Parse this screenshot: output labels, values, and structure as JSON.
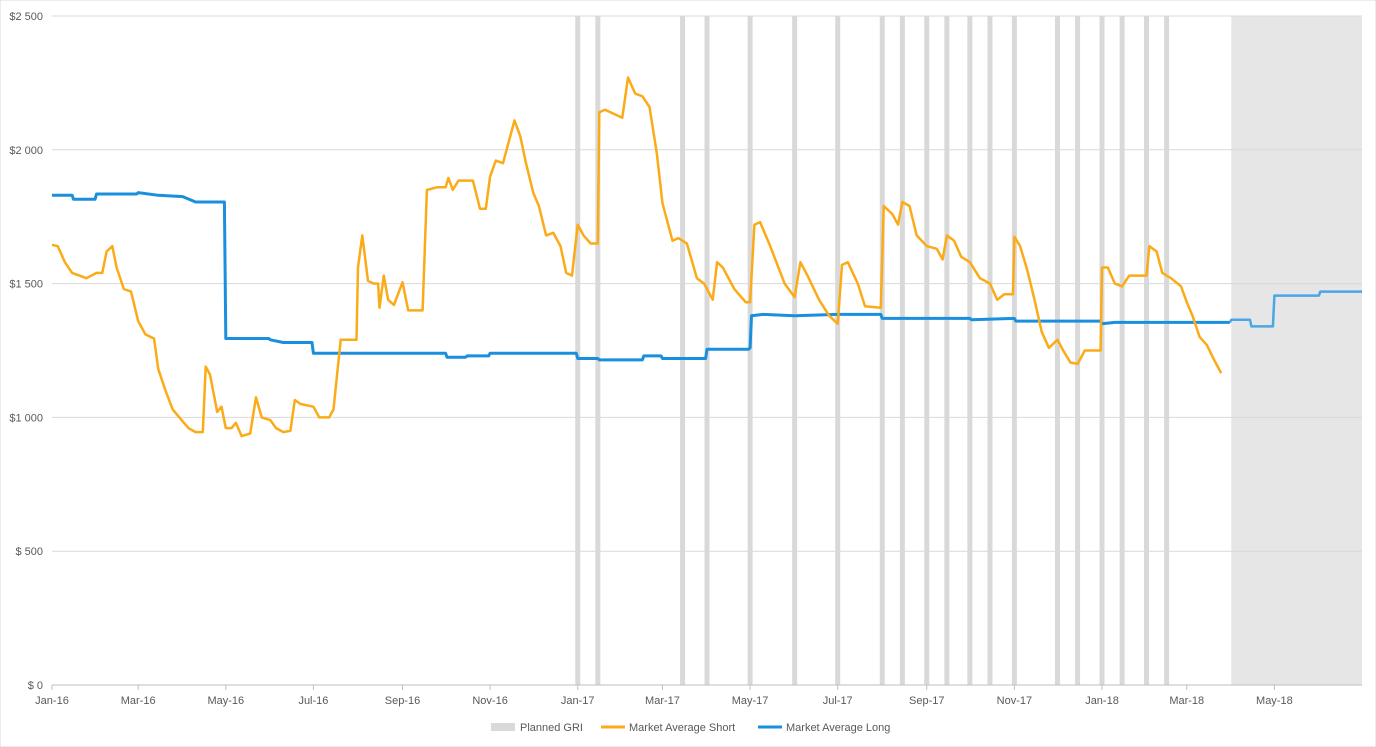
{
  "chart_data": {
    "type": "line",
    "title": "",
    "xlabel": "",
    "ylabel": "",
    "ylim": [
      0,
      2500
    ],
    "y_ticks": [
      0,
      500,
      1000,
      1500,
      2000,
      2500
    ],
    "y_tick_labels": [
      "$ 0",
      "$ 500",
      "$1 000",
      "$1 500",
      "$2 000",
      "$2 500"
    ],
    "x_range": [
      "2016-01-01",
      "2018-07-01"
    ],
    "x_ticks": [
      "2016-01-01",
      "2016-03-01",
      "2016-05-01",
      "2016-07-01",
      "2016-09-01",
      "2016-11-01",
      "2017-01-01",
      "2017-03-01",
      "2017-05-01",
      "2017-07-01",
      "2017-09-01",
      "2017-11-01",
      "2018-01-01",
      "2018-03-01",
      "2018-05-01"
    ],
    "x_tick_labels": [
      "Jan-16",
      "Mar-16",
      "May-16",
      "Jul-16",
      "Sep-16",
      "Nov-16",
      "Jan-17",
      "Mar-17",
      "May-17",
      "Jul-17",
      "Sep-17",
      "Nov-17",
      "Jan-18",
      "Mar-18",
      "May-18"
    ],
    "grid": "horizontal",
    "legend_position": "bottom",
    "legend": [
      "Planned GRI",
      "Market Average Short",
      "Market Average Long"
    ],
    "colors": {
      "gri": "#d9d9d9",
      "short": "#fbab18",
      "long": "#1a8fdd",
      "forecast_bg": "#e6e6e6",
      "forecast_line": "#4aa6e6",
      "grid": "#d9d9d9",
      "axis": "#bfbfbf",
      "tick_text": "#595959"
    },
    "forecast_region": [
      "2018-04-01",
      "2018-07-01"
    ],
    "planned_gri": [
      "2017-01-01",
      "2017-01-15",
      "2017-03-15",
      "2017-04-01",
      "2017-05-01",
      "2017-06-01",
      "2017-07-01",
      "2017-08-01",
      "2017-08-15",
      "2017-09-01",
      "2017-09-15",
      "2017-10-01",
      "2017-10-15",
      "2017-11-01",
      "2017-12-01",
      "2017-12-15",
      "2018-01-01",
      "2018-01-15",
      "2018-02-01",
      "2018-02-15"
    ],
    "series": [
      {
        "name": "Market Average Long",
        "values": [
          [
            "2016-01-01",
            1830
          ],
          [
            "2016-01-15",
            1830
          ],
          [
            "2016-01-16",
            1815
          ],
          [
            "2016-01-31",
            1815
          ],
          [
            "2016-02-01",
            1835
          ],
          [
            "2016-02-29",
            1835
          ],
          [
            "2016-03-01",
            1840
          ],
          [
            "2016-03-15",
            1830
          ],
          [
            "2016-04-01",
            1825
          ],
          [
            "2016-04-10",
            1805
          ],
          [
            "2016-04-30",
            1805
          ],
          [
            "2016-05-01",
            1295
          ],
          [
            "2016-05-31",
            1295
          ],
          [
            "2016-06-01",
            1290
          ],
          [
            "2016-06-10",
            1280
          ],
          [
            "2016-06-30",
            1280
          ],
          [
            "2016-07-01",
            1240
          ],
          [
            "2016-10-01",
            1240
          ],
          [
            "2016-10-02",
            1225
          ],
          [
            "2016-10-15",
            1225
          ],
          [
            "2016-10-16",
            1230
          ],
          [
            "2016-10-31",
            1230
          ],
          [
            "2016-11-01",
            1240
          ],
          [
            "2016-12-31",
            1240
          ],
          [
            "2017-01-01",
            1220
          ],
          [
            "2017-01-15",
            1220
          ],
          [
            "2017-01-16",
            1215
          ],
          [
            "2017-02-15",
            1215
          ],
          [
            "2017-02-16",
            1230
          ],
          [
            "2017-02-28",
            1230
          ],
          [
            "2017-03-01",
            1220
          ],
          [
            "2017-03-31",
            1220
          ],
          [
            "2017-04-01",
            1255
          ],
          [
            "2017-04-30",
            1255
          ],
          [
            "2017-05-01",
            1260
          ],
          [
            "2017-05-02",
            1380
          ],
          [
            "2017-05-10",
            1385
          ],
          [
            "2017-06-01",
            1380
          ],
          [
            "2017-07-01",
            1385
          ],
          [
            "2017-07-31",
            1385
          ],
          [
            "2017-08-01",
            1370
          ],
          [
            "2017-10-01",
            1370
          ],
          [
            "2017-10-02",
            1365
          ],
          [
            "2017-11-01",
            1370
          ],
          [
            "2017-11-02",
            1360
          ],
          [
            "2017-12-31",
            1360
          ],
          [
            "2018-01-01",
            1350
          ],
          [
            "2018-01-10",
            1355
          ],
          [
            "2018-03-31",
            1355
          ],
          [
            "2018-04-01",
            1365
          ],
          [
            "2018-04-14",
            1365
          ],
          [
            "2018-04-15",
            1340
          ],
          [
            "2018-04-30",
            1340
          ],
          [
            "2018-05-01",
            1455
          ],
          [
            "2018-06-01",
            1455
          ],
          [
            "2018-06-02",
            1470
          ],
          [
            "2018-07-01",
            1470
          ]
        ]
      },
      {
        "name": "Market Average Short",
        "values": [
          [
            "2016-01-01",
            1645
          ],
          [
            "2016-01-05",
            1640
          ],
          [
            "2016-01-10",
            1580
          ],
          [
            "2016-01-15",
            1540
          ],
          [
            "2016-01-20",
            1530
          ],
          [
            "2016-01-25",
            1520
          ],
          [
            "2016-02-01",
            1540
          ],
          [
            "2016-02-05",
            1540
          ],
          [
            "2016-02-08",
            1620
          ],
          [
            "2016-02-12",
            1640
          ],
          [
            "2016-02-15",
            1560
          ],
          [
            "2016-02-20",
            1480
          ],
          [
            "2016-02-25",
            1470
          ],
          [
            "2016-03-01",
            1360
          ],
          [
            "2016-03-06",
            1310
          ],
          [
            "2016-03-12",
            1295
          ],
          [
            "2016-03-15",
            1180
          ],
          [
            "2016-03-20",
            1100
          ],
          [
            "2016-03-25",
            1030
          ],
          [
            "2016-04-01",
            985
          ],
          [
            "2016-04-05",
            960
          ],
          [
            "2016-04-10",
            945
          ],
          [
            "2016-04-15",
            945
          ],
          [
            "2016-04-17",
            1190
          ],
          [
            "2016-04-20",
            1160
          ],
          [
            "2016-04-25",
            1020
          ],
          [
            "2016-04-28",
            1040
          ],
          [
            "2016-05-01",
            960
          ],
          [
            "2016-05-05",
            960
          ],
          [
            "2016-05-08",
            980
          ],
          [
            "2016-05-12",
            930
          ],
          [
            "2016-05-18",
            940
          ],
          [
            "2016-05-22",
            1075
          ],
          [
            "2016-05-26",
            1000
          ],
          [
            "2016-06-01",
            990
          ],
          [
            "2016-06-05",
            960
          ],
          [
            "2016-06-10",
            945
          ],
          [
            "2016-06-15",
            950
          ],
          [
            "2016-06-18",
            1065
          ],
          [
            "2016-06-22",
            1050
          ],
          [
            "2016-07-01",
            1040
          ],
          [
            "2016-07-05",
            1000
          ],
          [
            "2016-07-12",
            1000
          ],
          [
            "2016-07-15",
            1030
          ],
          [
            "2016-07-20",
            1290
          ],
          [
            "2016-07-31",
            1290
          ],
          [
            "2016-08-01",
            1560
          ],
          [
            "2016-08-04",
            1680
          ],
          [
            "2016-08-08",
            1510
          ],
          [
            "2016-08-12",
            1500
          ],
          [
            "2016-08-15",
            1500
          ],
          [
            "2016-08-16",
            1410
          ],
          [
            "2016-08-19",
            1530
          ],
          [
            "2016-08-22",
            1440
          ],
          [
            "2016-08-26",
            1420
          ],
          [
            "2016-09-01",
            1505
          ],
          [
            "2016-09-05",
            1400
          ],
          [
            "2016-09-15",
            1400
          ],
          [
            "2016-09-18",
            1850
          ],
          [
            "2016-09-25",
            1860
          ],
          [
            "2016-10-01",
            1860
          ],
          [
            "2016-10-03",
            1895
          ],
          [
            "2016-10-06",
            1850
          ],
          [
            "2016-10-10",
            1885
          ],
          [
            "2016-10-20",
            1885
          ],
          [
            "2016-10-25",
            1780
          ],
          [
            "2016-10-29",
            1780
          ],
          [
            "2016-11-01",
            1900
          ],
          [
            "2016-11-05",
            1960
          ],
          [
            "2016-11-10",
            1950
          ],
          [
            "2016-11-18",
            2110
          ],
          [
            "2016-11-22",
            2050
          ],
          [
            "2016-11-26",
            1950
          ],
          [
            "2016-12-01",
            1840
          ],
          [
            "2016-12-05",
            1790
          ],
          [
            "2016-12-10",
            1680
          ],
          [
            "2016-12-15",
            1690
          ],
          [
            "2016-12-20",
            1640
          ],
          [
            "2016-12-24",
            1540
          ],
          [
            "2016-12-28",
            1530
          ],
          [
            "2017-01-01",
            1720
          ],
          [
            "2017-01-05",
            1680
          ],
          [
            "2017-01-10",
            1650
          ],
          [
            "2017-01-15",
            1650
          ],
          [
            "2017-01-16",
            2140
          ],
          [
            "2017-01-20",
            2150
          ],
          [
            "2017-02-01",
            2120
          ],
          [
            "2017-02-05",
            2270
          ],
          [
            "2017-02-10",
            2210
          ],
          [
            "2017-02-15",
            2200
          ],
          [
            "2017-02-20",
            2160
          ],
          [
            "2017-02-25",
            1990
          ],
          [
            "2017-03-01",
            1800
          ],
          [
            "2017-03-08",
            1660
          ],
          [
            "2017-03-12",
            1670
          ],
          [
            "2017-03-18",
            1650
          ],
          [
            "2017-03-25",
            1520
          ],
          [
            "2017-03-30",
            1500
          ],
          [
            "2017-04-05",
            1440
          ],
          [
            "2017-04-08",
            1580
          ],
          [
            "2017-04-12",
            1560
          ],
          [
            "2017-04-20",
            1480
          ],
          [
            "2017-04-28",
            1430
          ],
          [
            "2017-05-01",
            1430
          ],
          [
            "2017-05-04",
            1720
          ],
          [
            "2017-05-08",
            1730
          ],
          [
            "2017-05-15",
            1640
          ],
          [
            "2017-05-25",
            1500
          ],
          [
            "2017-06-01",
            1450
          ],
          [
            "2017-06-05",
            1580
          ],
          [
            "2017-06-10",
            1530
          ],
          [
            "2017-06-18",
            1440
          ],
          [
            "2017-06-25",
            1380
          ],
          [
            "2017-07-01",
            1350
          ],
          [
            "2017-07-04",
            1570
          ],
          [
            "2017-07-08",
            1580
          ],
          [
            "2017-07-15",
            1500
          ],
          [
            "2017-07-20",
            1415
          ],
          [
            "2017-07-31",
            1410
          ],
          [
            "2017-08-02",
            1790
          ],
          [
            "2017-08-08",
            1760
          ],
          [
            "2017-08-12",
            1720
          ],
          [
            "2017-08-15",
            1805
          ],
          [
            "2017-08-20",
            1790
          ],
          [
            "2017-08-25",
            1680
          ],
          [
            "2017-09-01",
            1640
          ],
          [
            "2017-09-08",
            1630
          ],
          [
            "2017-09-12",
            1590
          ],
          [
            "2017-09-15",
            1680
          ],
          [
            "2017-09-20",
            1660
          ],
          [
            "2017-09-25",
            1600
          ],
          [
            "2017-10-01",
            1580
          ],
          [
            "2017-10-08",
            1520
          ],
          [
            "2017-10-15",
            1500
          ],
          [
            "2017-10-20",
            1440
          ],
          [
            "2017-10-25",
            1460
          ],
          [
            "2017-10-31",
            1460
          ],
          [
            "2017-11-01",
            1675
          ],
          [
            "2017-11-05",
            1640
          ],
          [
            "2017-11-10",
            1550
          ],
          [
            "2017-11-15",
            1440
          ],
          [
            "2017-11-20",
            1320
          ],
          [
            "2017-11-25",
            1260
          ],
          [
            "2017-12-01",
            1290
          ],
          [
            "2017-12-05",
            1250
          ],
          [
            "2017-12-10",
            1205
          ],
          [
            "2017-12-15",
            1200
          ],
          [
            "2017-12-20",
            1250
          ],
          [
            "2017-12-31",
            1250
          ],
          [
            "2018-01-01",
            1560
          ],
          [
            "2018-01-05",
            1560
          ],
          [
            "2018-01-10",
            1500
          ],
          [
            "2018-01-15",
            1490
          ],
          [
            "2018-01-20",
            1530
          ],
          [
            "2018-02-01",
            1530
          ],
          [
            "2018-02-03",
            1640
          ],
          [
            "2018-02-08",
            1620
          ],
          [
            "2018-02-12",
            1540
          ],
          [
            "2018-02-18",
            1520
          ],
          [
            "2018-02-25",
            1490
          ],
          [
            "2018-03-01",
            1430
          ],
          [
            "2018-03-05",
            1380
          ],
          [
            "2018-03-10",
            1300
          ],
          [
            "2018-03-15",
            1270
          ],
          [
            "2018-03-20",
            1215
          ],
          [
            "2018-03-25",
            1165
          ]
        ]
      }
    ]
  }
}
